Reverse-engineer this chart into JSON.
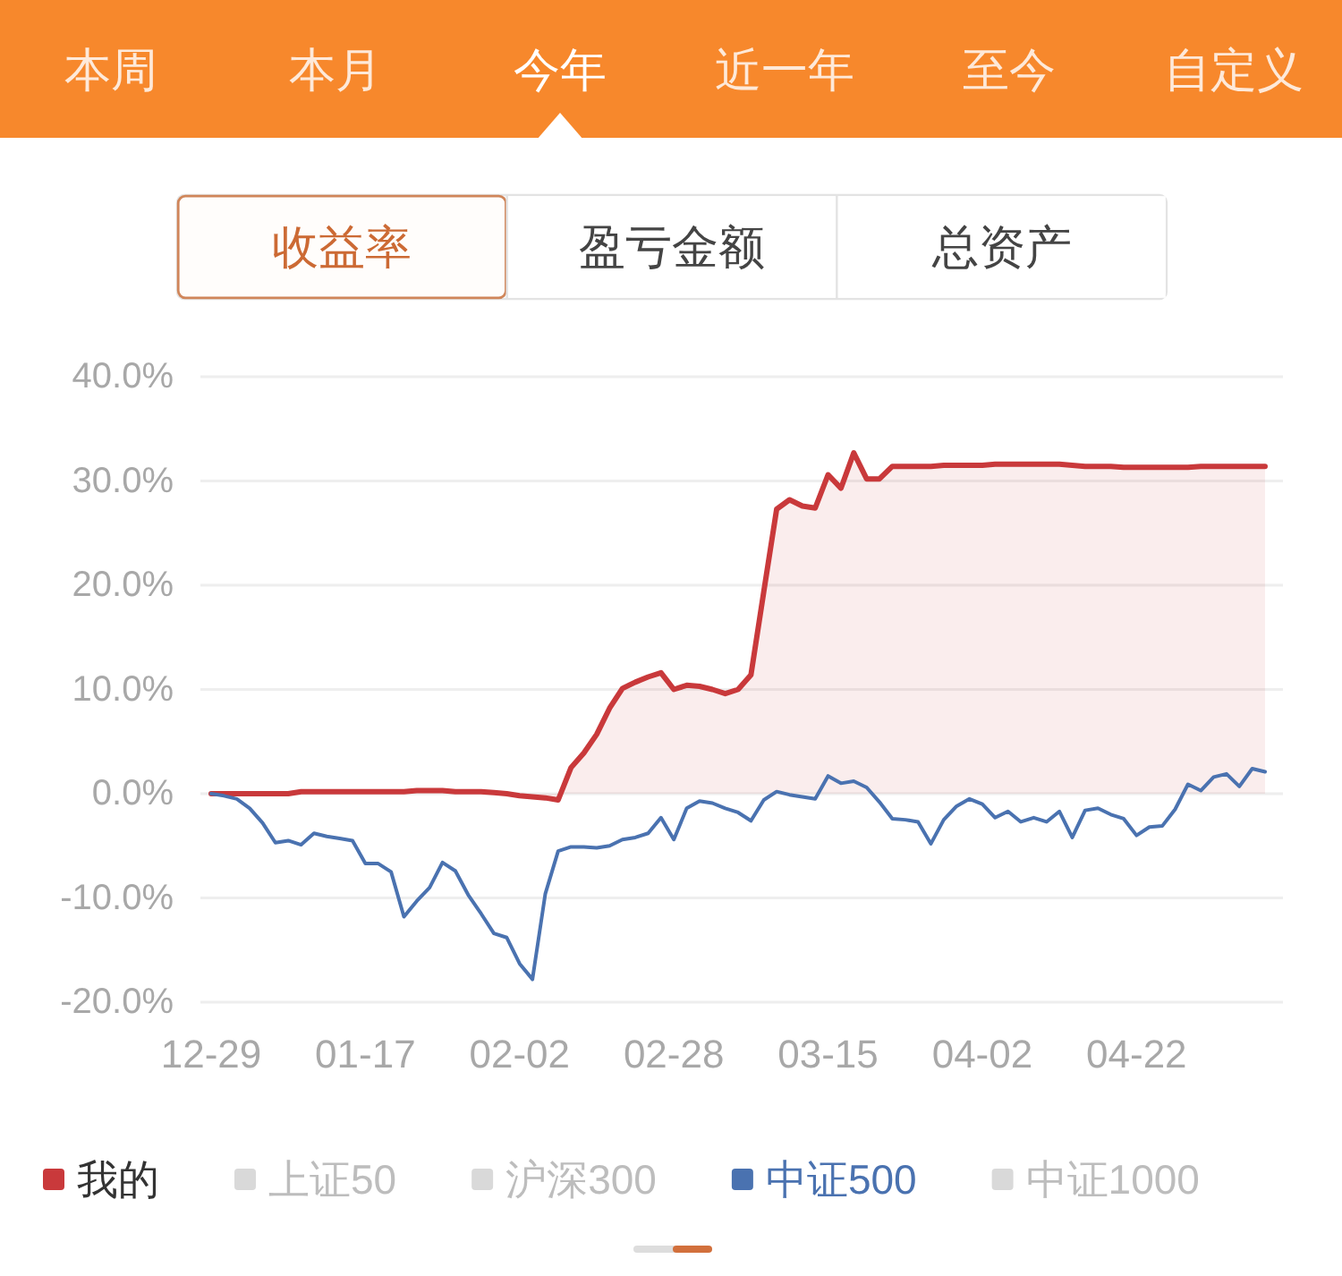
{
  "chart_data": {
    "type": "line",
    "annotations": [
      "本周",
      "本月",
      "今年",
      "近一年",
      "至今",
      "自定义",
      "收益率",
      "盈亏金额",
      "总资产"
    ],
    "categories": [
      "12-29",
      null,
      null,
      null,
      null,
      null,
      null,
      null,
      null,
      null,
      null,
      null,
      "01-17",
      null,
      null,
      null,
      null,
      null,
      null,
      null,
      null,
      null,
      null,
      null,
      "02-02",
      null,
      null,
      null,
      null,
      null,
      null,
      null,
      null,
      null,
      null,
      null,
      "02-28",
      null,
      null,
      null,
      null,
      null,
      null,
      null,
      null,
      null,
      null,
      null,
      "03-15",
      null,
      null,
      null,
      null,
      null,
      null,
      null,
      null,
      null,
      null,
      null,
      "04-02",
      null,
      null,
      null,
      null,
      null,
      null,
      null,
      null,
      null,
      null,
      null,
      "04-22",
      null,
      null,
      null,
      null,
      null,
      null,
      null,
      null,
      null,
      null
    ],
    "series": [
      {
        "name": "我的",
        "type": "area",
        "color": "#c9393b",
        "values": [
          0,
          0,
          0,
          0,
          0,
          0,
          0,
          0.2,
          0.2,
          0.2,
          0.2,
          0.2,
          0.2,
          0.2,
          0.2,
          0.2,
          0.3,
          0.3,
          0.3,
          0.2,
          0.2,
          0.2,
          0.1,
          0,
          -0.2,
          -0.3,
          -0.4,
          -0.6,
          2.5,
          3.9,
          5.7,
          8.2,
          10.1,
          10.7,
          11.2,
          11.6,
          10.0,
          10.4,
          10.3,
          10.0,
          9.6,
          10.0,
          11.4,
          19.4,
          27.3,
          28.2,
          27.6,
          27.4,
          30.6,
          29.3,
          32.7,
          30.2,
          30.2,
          31.4,
          31.4,
          31.4,
          31.4,
          31.5,
          31.5,
          31.5,
          31.5,
          31.6,
          31.6,
          31.6,
          31.6,
          31.6,
          31.6,
          31.5,
          31.4,
          31.4,
          31.4,
          31.3,
          31.3,
          31.3,
          31.3,
          31.3,
          31.3,
          31.4,
          31.4,
          31.4,
          31.4,
          31.4,
          31.4
        ]
      },
      {
        "name": "上证50",
        "color": "#d9d9d9",
        "values": [
          null,
          null,
          null,
          null,
          null,
          null,
          null,
          null,
          null,
          null,
          null,
          null,
          null,
          null,
          null,
          null,
          null,
          null,
          null,
          null,
          null,
          null,
          null,
          null,
          null,
          null,
          null,
          null,
          null,
          null,
          null,
          null,
          null,
          null,
          null,
          null,
          null,
          null,
          null,
          null,
          null,
          null,
          null,
          null,
          null,
          null,
          null,
          null,
          null,
          null,
          null,
          null,
          null,
          null,
          null,
          null,
          null,
          null,
          null,
          null,
          null,
          null,
          null,
          null,
          null,
          null,
          null,
          null,
          null,
          null,
          null,
          null,
          null,
          null,
          null,
          null,
          null,
          null,
          null,
          null,
          null,
          null,
          null
        ]
      },
      {
        "name": "沪深300",
        "color": "#d9d9d9",
        "values": [
          null,
          null,
          null,
          null,
          null,
          null,
          null,
          null,
          null,
          null,
          null,
          null,
          null,
          null,
          null,
          null,
          null,
          null,
          null,
          null,
          null,
          null,
          null,
          null,
          null,
          null,
          null,
          null,
          null,
          null,
          null,
          null,
          null,
          null,
          null,
          null,
          null,
          null,
          null,
          null,
          null,
          null,
          null,
          null,
          null,
          null,
          null,
          null,
          null,
          null,
          null,
          null,
          null,
          null,
          null,
          null,
          null,
          null,
          null,
          null,
          null,
          null,
          null,
          null,
          null,
          null,
          null,
          null,
          null,
          null,
          null,
          null,
          null,
          null,
          null,
          null,
          null,
          null,
          null,
          null,
          null,
          null,
          null
        ]
      },
      {
        "name": "中证500",
        "color": "#4a72b0",
        "values": [
          0,
          -0.2,
          -0.5,
          -1.4,
          -2.8,
          -4.7,
          -4.5,
          -4.9,
          -3.8,
          -4.1,
          -4.3,
          -4.5,
          -6.7,
          -6.7,
          -7.5,
          -11.8,
          -10.3,
          -9.0,
          -6.6,
          -7.4,
          -9.7,
          -11.5,
          -13.4,
          -13.8,
          -16.3,
          -17.8,
          -9.6,
          -5.5,
          -5.1,
          -5.1,
          -5.2,
          -5.0,
          -4.4,
          -4.2,
          -3.8,
          -2.3,
          -4.4,
          -1.4,
          -0.7,
          -0.9,
          -1.4,
          -1.8,
          -2.6,
          -0.6,
          0.2,
          -0.1,
          -0.3,
          -0.5,
          1.7,
          1.0,
          1.2,
          0.6,
          -0.8,
          -2.4,
          -2.5,
          -2.7,
          -4.8,
          -2.5,
          -1.2,
          -0.5,
          -1.0,
          -2.3,
          -1.7,
          -2.7,
          -2.3,
          -2.7,
          -1.7,
          -4.2,
          -1.6,
          -1.4,
          -2.0,
          -2.4,
          -4.0,
          -3.2,
          -3.1,
          -1.5,
          0.9,
          0.3,
          1.6,
          1.9,
          0.7,
          2.4,
          2.1
        ]
      },
      {
        "name": "中证1000",
        "color": "#d9d9d9",
        "values": [
          null,
          null,
          null,
          null,
          null,
          null,
          null,
          null,
          null,
          null,
          null,
          null,
          null,
          null,
          null,
          null,
          null,
          null,
          null,
          null,
          null,
          null,
          null,
          null,
          null,
          null,
          null,
          null,
          null,
          null,
          null,
          null,
          null,
          null,
          null,
          null,
          null,
          null,
          null,
          null,
          null,
          null,
          null,
          null,
          null,
          null,
          null,
          null,
          null,
          null,
          null,
          null,
          null,
          null,
          null,
          null,
          null,
          null,
          null,
          null,
          null,
          null,
          null,
          null,
          null,
          null,
          null,
          null,
          null,
          null,
          null,
          null,
          null,
          null,
          null,
          null,
          null,
          null,
          null,
          null,
          null,
          null,
          null
        ]
      }
    ],
    "ylim": [
      -20,
      40
    ],
    "yticks": [
      {
        "value": -20,
        "label": "-20.0%"
      },
      {
        "value": -10,
        "label": "-10.0%"
      },
      {
        "value": 0,
        "label": "0.0%"
      },
      {
        "value": 10,
        "label": "10.0%"
      },
      {
        "value": 20,
        "label": "20.0%"
      },
      {
        "value": 30,
        "label": "30.0%"
      },
      {
        "value": 40,
        "label": "40.0%"
      }
    ],
    "grid": "y",
    "legend": "bottom"
  }
}
